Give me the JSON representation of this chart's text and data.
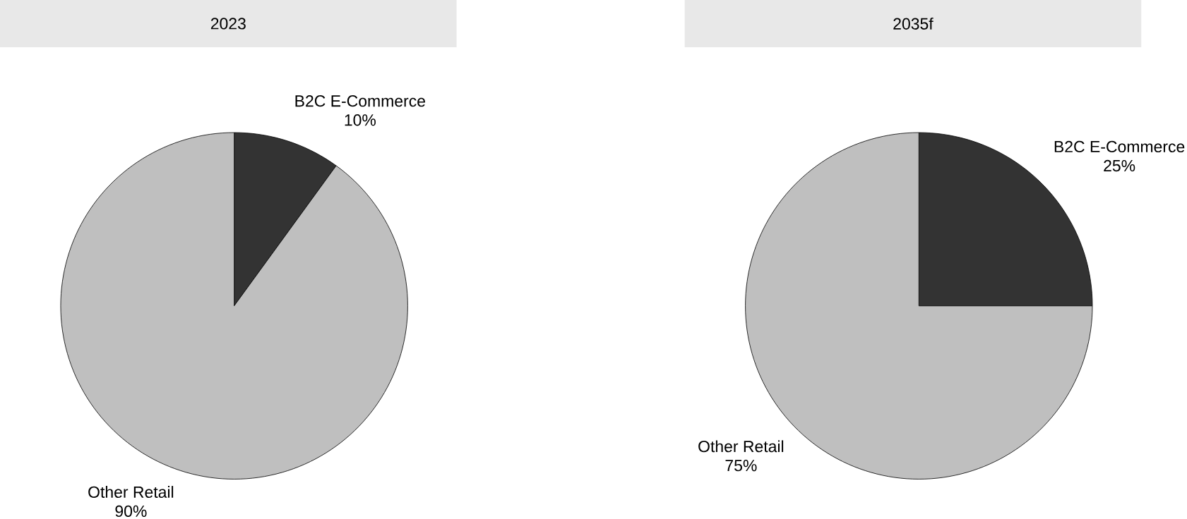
{
  "chart_data": [
    {
      "type": "pie",
      "title": "2023",
      "categories": [
        "B2C E-Commerce",
        "Other Retail"
      ],
      "values": [
        10,
        90
      ],
      "colors": [
        "#333333",
        "#bfbfbf"
      ],
      "value_labels": [
        "10%",
        "90%"
      ]
    },
    {
      "type": "pie",
      "title": "2035f",
      "categories": [
        "B2C E-Commerce",
        "Other Retail"
      ],
      "values": [
        25,
        75
      ],
      "colors": [
        "#333333",
        "#bfbfbf"
      ],
      "value_labels": [
        "25%",
        "75%"
      ]
    }
  ]
}
